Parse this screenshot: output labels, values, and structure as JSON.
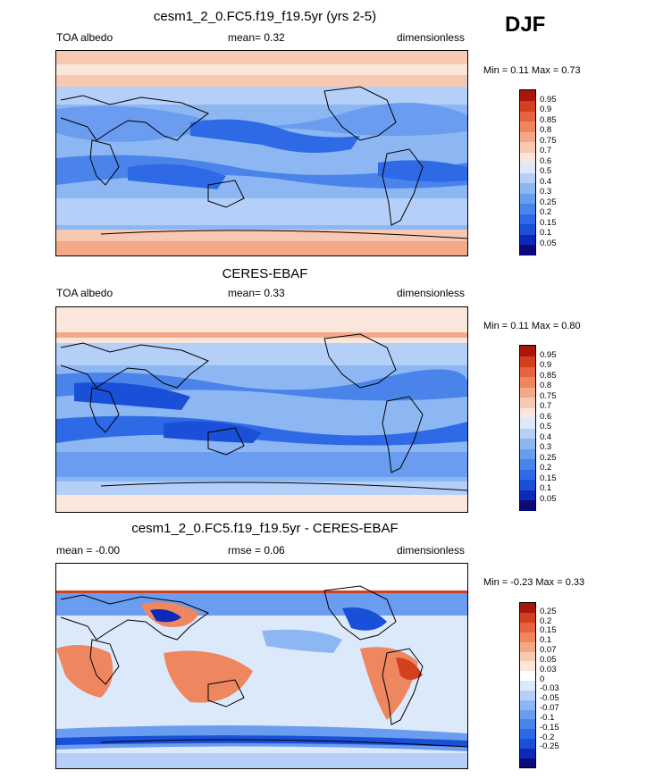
{
  "season": "DJF",
  "panels": [
    {
      "title": "cesm1_2_0.FC5.f19_f19.5yr (yrs 2-5)",
      "left_label": "TOA albedo",
      "center_label": "mean=  0.32",
      "right_label": "dimensionless",
      "minmax": "Min =  0.11 Max =  0.73",
      "colorbar_labels": [
        "0.95",
        "0.9",
        "0.85",
        "0.8",
        "0.75",
        "0.7",
        "0.6",
        "0.5",
        "0.4",
        "0.3",
        "0.25",
        "0.2",
        "0.15",
        "0.1",
        "0.05"
      ]
    },
    {
      "title": "CERES-EBAF",
      "left_label": "TOA albedo",
      "center_label": "mean=  0.33",
      "right_label": "dimensionless",
      "minmax": "Min =  0.11 Max =  0.80",
      "colorbar_labels": [
        "0.95",
        "0.9",
        "0.85",
        "0.8",
        "0.75",
        "0.7",
        "0.6",
        "0.5",
        "0.4",
        "0.3",
        "0.25",
        "0.2",
        "0.15",
        "0.1",
        "0.05"
      ]
    },
    {
      "title": "cesm1_2_0.FC5.f19_f19.5yr - CERES-EBAF",
      "left_label": "mean =  -0.00",
      "center_label": "rmse =   0.06",
      "right_label": "dimensionless",
      "minmax": "Min =  -0.23 Max =   0.33",
      "colorbar_labels": [
        "0.25",
        "0.2",
        "0.15",
        "0.1",
        "0.07",
        "0.05",
        "0.03",
        "0",
        "-0.03",
        "-0.05",
        "-0.07",
        "-0.1",
        "-0.15",
        "-0.2",
        "-0.25"
      ]
    }
  ],
  "colors": {
    "albedo_scale": [
      "#0d0a7a",
      "#0c2ab8",
      "#1a4fd8",
      "#2f6ae6",
      "#4a84ea",
      "#6a9cef",
      "#8db7f3",
      "#b5d0f8",
      "#dce9fb",
      "#fbe6dc",
      "#f8c9b2",
      "#f3a886",
      "#ee8660",
      "#e6643c",
      "#d24020",
      "#a8170d"
    ],
    "diff_scale": [
      "#0d0a7a",
      "#0c2ab8",
      "#1a4fd8",
      "#2f6ae6",
      "#4a84ea",
      "#6a9cef",
      "#8db7f3",
      "#b5d0f8",
      "#dce9fb",
      "#ffffff",
      "#fbe6dc",
      "#f8c9b2",
      "#f3a886",
      "#ee8660",
      "#e6643c",
      "#d24020",
      "#a8170d"
    ]
  }
}
